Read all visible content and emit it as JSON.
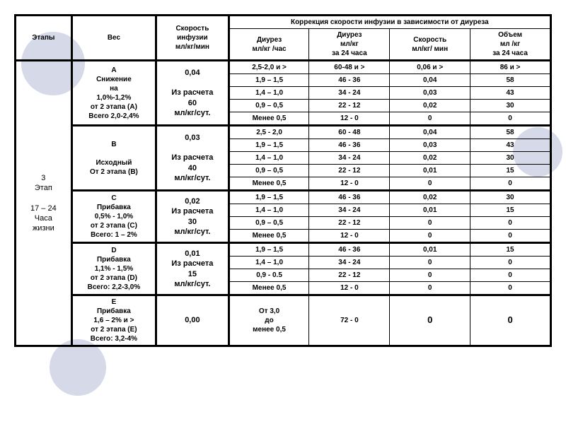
{
  "headers": {
    "stage": "Этапы",
    "weight": "Вес",
    "rate": "Скорость\nинфузии\nмл/кг/мин",
    "correction": "Коррекция скорости инфузии в зависимости от диуреза",
    "diuresis_hr": "Диурез\nмл/кг /час",
    "diuresis_24": "Диурез\nмл/кг\nза 24 часа",
    "speed": "Скорость\nмл/кг/ мин",
    "volume": "Объем\nмл /кг\nза 24 часа"
  },
  "stage_label": "3\nЭтап\n\n17 – 24\nЧаса\nжизни",
  "groups": [
    {
      "weight": "A\nСнижение\nна\n1,0%-1,2%\nот 2 этапа (A)\nВсего 2,0-2,4%",
      "rate": "0,04\n\nИз расчета\n60\nмл/кг/сут.",
      "rows": [
        [
          "2,5-2,0 и >",
          "60-48 и >",
          "0,06  и >",
          "86 и >"
        ],
        [
          "1,9 – 1,5",
          "46 - 36",
          "0,04",
          "58"
        ],
        [
          "1,4 – 1,0",
          "34 - 24",
          "0,03",
          "43"
        ],
        [
          "0,9 – 0,5",
          "22 - 12",
          "0,02",
          "30"
        ],
        [
          "Менее 0,5",
          "12 - 0",
          "0",
          "0"
        ]
      ]
    },
    {
      "weight": "B\n\nИсходный\nОт 2 этапа (B)",
      "rate": "0,03\n\nИз расчета\n40\nмл/кг/сут.",
      "rows": [
        [
          "2,5 - 2,0",
          "60 - 48",
          "0,04",
          "58"
        ],
        [
          "1,9 – 1,5",
          "46 - 36",
          "0,03",
          "43"
        ],
        [
          "1,4 – 1,0",
          "34 - 24",
          "0,02",
          "30"
        ],
        [
          "0,9 – 0,5",
          "22 - 12",
          "0,01",
          "15"
        ],
        [
          "Менее 0,5",
          "12 - 0",
          "0",
          "0"
        ]
      ]
    },
    {
      "weight": "C\nПрибавка\n0,5% - 1,0%\nот 2 этапа (C)\nВсего: 1 – 2%",
      "rate": "0,02\nИз расчета\n30\nмл/кг/сут.",
      "rows": [
        [
          "1,9 – 1,5",
          "46 - 36",
          "0,02",
          "30"
        ],
        [
          "1,4 – 1,0",
          "34 - 24",
          "0,01",
          "15"
        ],
        [
          "0,9 – 0,5",
          "22 - 12",
          "0",
          "0"
        ],
        [
          "Менее 0,5",
          "12 - 0",
          "0",
          "0"
        ]
      ]
    },
    {
      "weight": "D\nПрибавка\n1,1% - 1,5%\nот 2 этапа (D)\nВсего: 2,2-3,0%",
      "rate": "0,01\nИз расчета\n15\nмл/кг/сут.",
      "rows": [
        [
          "1,9 – 1,5",
          "46 - 36",
          "0,01",
          "15"
        ],
        [
          "1,4 – 1,0",
          "34 - 24",
          "0",
          "0"
        ],
        [
          "0,9 - 0.5",
          "22 - 12",
          "0",
          "0"
        ],
        [
          "Менее 0,5",
          "12 - 0",
          "0",
          "0"
        ]
      ]
    },
    {
      "weight": "E\nПрибавка\n1,6 – 2% и >\nот 2 этапа (E)\nВсего: 3,2-4%",
      "rate": "0,00",
      "rows": [
        [
          "От 3,0\nдо\nменее 0,5",
          "72  - 0",
          "0",
          "0"
        ]
      ]
    }
  ],
  "style": {
    "border_color": "#000000",
    "circle_color": "#d5d9e8",
    "font_family": "Arial",
    "header_fontsize": 10,
    "body_fontsize": 10
  }
}
